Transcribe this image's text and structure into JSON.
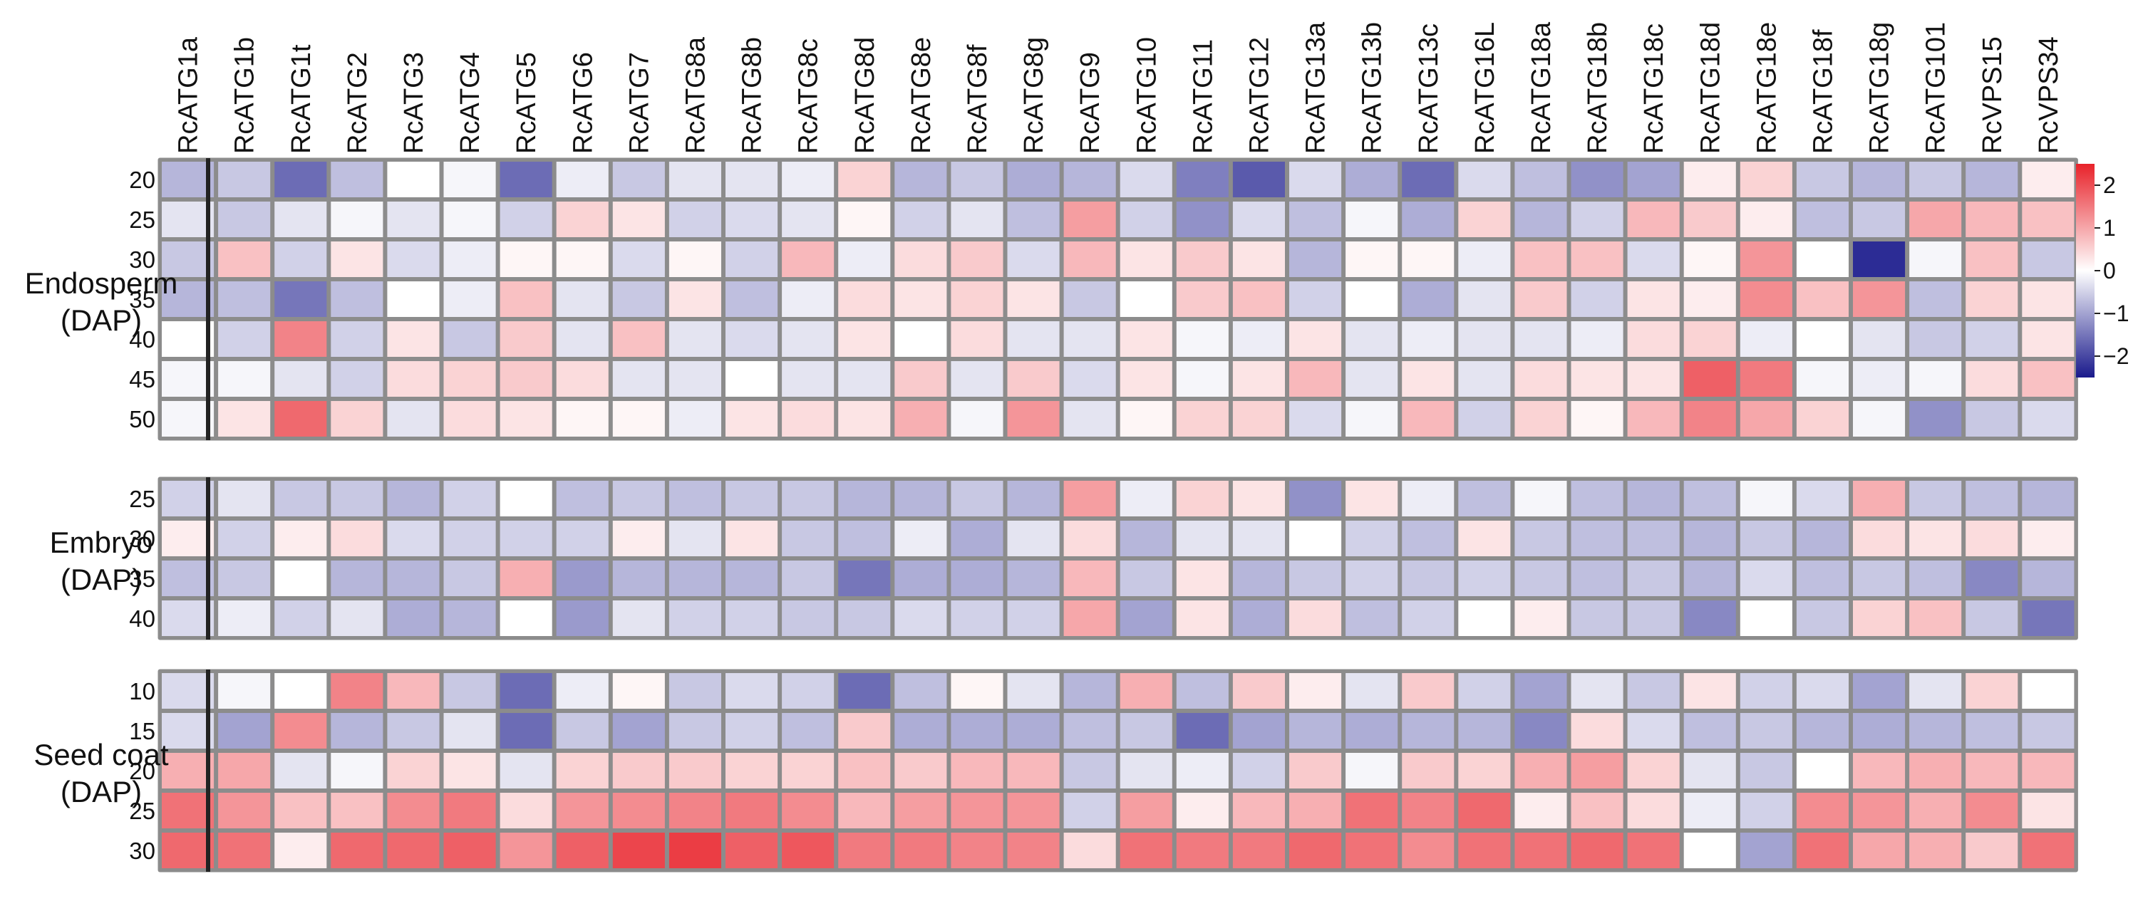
{
  "chart_data": {
    "type": "heatmap",
    "title": "",
    "x_unit_caption": "DAP",
    "columns": [
      "RcATG1a",
      "RcATG1b",
      "RcATG1t",
      "RcATG2",
      "RcATG3",
      "RcATG4",
      "RcATG5",
      "RcATG6",
      "RcATG7",
      "RcATG8a",
      "RcATG8b",
      "RcATG8c",
      "RcATG8d",
      "RcATG8e",
      "RcATG8f",
      "RcATG8g",
      "RcATG9",
      "RcATG10",
      "RcATG11",
      "RcATG12",
      "RcATG13a",
      "RcATG13b",
      "RcATG13c",
      "RcATG16L",
      "RcATG18a",
      "RcATG18b",
      "RcATG18c",
      "RcATG18d",
      "RcATG18e",
      "RcATG18f",
      "RcATG18g",
      "RcATG101",
      "RcVPS15",
      "RcVPS34"
    ],
    "color_scale": {
      "min": -2.5,
      "max": 2.5,
      "ticks": [
        2,
        1,
        0,
        -1,
        -2
      ],
      "tick_labels": [
        "2",
        "1",
        "0",
        "−1",
        "−2"
      ],
      "low_color": "#1a1a8c",
      "mid_color": "#ffffff",
      "high_color": "#e8222a"
    },
    "groups": [
      {
        "name": "Endosperm",
        "unit": "(DAP)",
        "rows": [
          "20",
          "25",
          "30",
          "35",
          "40",
          "45",
          "50"
        ],
        "values": [
          [
            -0.8,
            -0.6,
            -1.6,
            -0.7,
            0,
            -0.1,
            -1.6,
            -0.2,
            -0.6,
            -0.3,
            -0.3,
            -0.2,
            0.5,
            -0.8,
            -0.6,
            -0.9,
            -0.8,
            -0.4,
            -1.4,
            -1.8,
            -0.4,
            -0.9,
            -1.6,
            -0.4,
            -0.7,
            -1.2,
            -1.0,
            0.2,
            0.5,
            -0.6,
            -0.8,
            -0.6,
            -0.8,
            0.2
          ],
          [
            -0.3,
            -0.6,
            -0.3,
            -0.1,
            -0.3,
            -0.1,
            -0.5,
            0.5,
            0.3,
            -0.5,
            -0.4,
            -0.3,
            0.1,
            -0.5,
            -0.3,
            -0.7,
            1.1,
            -0.5,
            -1.2,
            -0.4,
            -0.7,
            -0.1,
            -0.9,
            0.5,
            -0.8,
            -0.5,
            0.8,
            0.6,
            0.2,
            -0.7,
            -0.6,
            1.0,
            0.8,
            0.7
          ],
          [
            -0.6,
            0.7,
            -0.5,
            0.3,
            -0.4,
            -0.2,
            0.1,
            0.1,
            -0.4,
            0.1,
            -0.5,
            0.8,
            -0.2,
            0.4,
            0.6,
            -0.4,
            0.8,
            0.3,
            0.6,
            0.3,
            -0.8,
            0.1,
            0.1,
            -0.2,
            0.7,
            0.7,
            -0.4,
            0.1,
            1.2,
            0,
            -2.3,
            -0.1,
            0.7,
            -0.6
          ],
          [
            -0.8,
            -0.7,
            -1.5,
            -0.7,
            0,
            -0.2,
            0.7,
            -0.3,
            -0.6,
            0.3,
            -0.7,
            -0.2,
            0.4,
            0.3,
            0.5,
            0.3,
            -0.6,
            0,
            0.6,
            0.7,
            -0.5,
            0,
            -0.9,
            -0.3,
            0.6,
            -0.5,
            0.3,
            0.2,
            1.3,
            0.7,
            1.2,
            -0.7,
            0.5,
            0.3
          ],
          [
            0,
            -0.5,
            1.4,
            -0.5,
            0.3,
            -0.6,
            0.6,
            -0.3,
            0.7,
            -0.3,
            -0.4,
            -0.3,
            0.3,
            0,
            0.4,
            -0.3,
            -0.3,
            0.3,
            -0.1,
            -0.2,
            0.3,
            -0.3,
            -0.2,
            -0.3,
            -0.3,
            -0.2,
            0.4,
            0.5,
            -0.2,
            0,
            -0.3,
            -0.6,
            -0.5,
            0.3
          ],
          [
            -0.1,
            -0.1,
            -0.3,
            -0.5,
            0.4,
            0.5,
            0.6,
            0.4,
            -0.3,
            -0.3,
            0,
            -0.3,
            -0.3,
            0.6,
            -0.3,
            0.6,
            -0.4,
            0.3,
            -0.1,
            0.3,
            0.8,
            -0.3,
            0.3,
            -0.3,
            0.4,
            0.3,
            0.3,
            1.8,
            1.5,
            -0.1,
            -0.2,
            -0.1,
            0.4,
            0.7
          ],
          [
            -0.1,
            0.3,
            1.7,
            0.5,
            -0.3,
            0.4,
            0.3,
            0.1,
            0.1,
            -0.2,
            0.3,
            0.4,
            0.3,
            0.9,
            -0.1,
            1.2,
            -0.3,
            0.1,
            0.5,
            0.5,
            -0.4,
            -0.1,
            0.8,
            -0.5,
            0.5,
            0.1,
            0.8,
            1.4,
            1.0,
            0.5,
            -0.1,
            -1.2,
            -0.6,
            -0.4
          ]
        ]
      },
      {
        "name": "Embryo",
        "unit": "(DAP)",
        "rows": [
          "25",
          "30",
          "35",
          "40"
        ],
        "values": [
          [
            -0.5,
            -0.3,
            -0.6,
            -0.6,
            -0.8,
            -0.5,
            0,
            -0.7,
            -0.6,
            -0.7,
            -0.6,
            -0.6,
            -0.8,
            -0.8,
            -0.6,
            -0.8,
            1.1,
            -0.2,
            0.5,
            0.3,
            -1.2,
            0.3,
            -0.2,
            -0.7,
            -0.1,
            -0.7,
            -0.8,
            -0.7,
            -0.1,
            -0.4,
            0.9,
            -0.6,
            -0.7,
            -0.8
          ],
          [
            0.2,
            -0.5,
            0.2,
            0.4,
            -0.4,
            -0.5,
            -0.5,
            -0.5,
            0.2,
            -0.3,
            0.3,
            -0.6,
            -0.7,
            -0.2,
            -0.9,
            -0.3,
            0.4,
            -0.8,
            -0.3,
            -0.3,
            0,
            -0.5,
            -0.7,
            0.3,
            -0.6,
            -0.7,
            -0.7,
            -0.8,
            -0.6,
            -0.8,
            0.4,
            0.3,
            0.4,
            0.2
          ],
          [
            -0.7,
            -0.6,
            0,
            -0.8,
            -0.8,
            -0.6,
            0.9,
            -1.1,
            -0.8,
            -0.8,
            -0.8,
            -0.6,
            -1.5,
            -0.9,
            -0.9,
            -0.8,
            0.8,
            -0.6,
            0.3,
            -0.8,
            -0.6,
            -0.5,
            -0.6,
            -0.5,
            -0.6,
            -0.7,
            -0.6,
            -0.8,
            -0.4,
            -0.7,
            -0.6,
            -0.7,
            -1.3,
            -0.8
          ],
          [
            -0.4,
            -0.2,
            -0.5,
            -0.3,
            -0.9,
            -0.8,
            0,
            -1.1,
            -0.3,
            -0.5,
            -0.5,
            -0.6,
            -0.6,
            -0.4,
            -0.5,
            -0.5,
            1.0,
            -1.0,
            0.3,
            -0.9,
            0.4,
            -0.7,
            -0.5,
            0,
            0.2,
            -0.6,
            -0.6,
            -1.3,
            0,
            -0.6,
            0.5,
            0.7,
            -0.6,
            -1.5
          ]
        ]
      },
      {
        "name": "Seed coat",
        "unit": "(DAP)",
        "rows": [
          "10",
          "15",
          "20",
          "25",
          "30"
        ],
        "values": [
          [
            -0.4,
            -0.1,
            0,
            1.4,
            0.8,
            -0.6,
            -1.6,
            -0.2,
            0.1,
            -0.6,
            -0.4,
            -0.5,
            -1.6,
            -0.7,
            0.1,
            -0.3,
            -0.8,
            0.9,
            -0.7,
            0.6,
            0.2,
            -0.3,
            0.6,
            -0.5,
            -1.0,
            -0.3,
            -0.6,
            0.3,
            -0.5,
            -0.4,
            -1.0,
            -0.3,
            0.5,
            0
          ],
          [
            -0.4,
            -1.0,
            1.3,
            -0.8,
            -0.6,
            -0.3,
            -1.6,
            -0.6,
            -1.0,
            -0.6,
            -0.5,
            -0.7,
            0.6,
            -0.9,
            -0.9,
            -0.9,
            -0.7,
            -0.6,
            -1.6,
            -1.0,
            -0.8,
            -0.9,
            -0.8,
            -0.8,
            -1.3,
            0.4,
            -0.4,
            -0.7,
            -0.6,
            -0.8,
            -0.9,
            -0.8,
            -0.7,
            -0.6
          ],
          [
            0.9,
            1.0,
            -0.3,
            -0.1,
            0.5,
            0.3,
            -0.3,
            0.5,
            0.6,
            0.6,
            0.5,
            0.5,
            0.7,
            0.6,
            0.8,
            0.8,
            -0.6,
            -0.3,
            -0.2,
            -0.5,
            0.6,
            -0.1,
            0.6,
            0.5,
            0.9,
            1.1,
            0.5,
            -0.3,
            -0.6,
            0,
            0.8,
            0.9,
            0.8,
            0.8
          ],
          [
            1.6,
            1.2,
            0.7,
            0.7,
            1.3,
            1.5,
            0.4,
            1.2,
            1.3,
            1.4,
            1.5,
            1.3,
            0.8,
            1.1,
            1.2,
            1.2,
            -0.5,
            1.1,
            0.2,
            0.8,
            0.9,
            1.6,
            1.4,
            1.7,
            0.2,
            0.7,
            0.4,
            -0.2,
            -0.5,
            1.3,
            1.2,
            0.9,
            1.3,
            0.3
          ],
          [
            1.7,
            1.6,
            0.2,
            1.7,
            1.7,
            1.8,
            1.2,
            1.8,
            2.1,
            2.2,
            1.8,
            1.9,
            1.5,
            1.5,
            1.4,
            1.4,
            0.4,
            1.6,
            1.5,
            1.5,
            1.7,
            1.6,
            1.3,
            1.6,
            1.6,
            1.7,
            1.6,
            0,
            -1.0,
            1.6,
            1.0,
            0.9,
            0.6,
            1.6
          ]
        ]
      }
    ]
  }
}
